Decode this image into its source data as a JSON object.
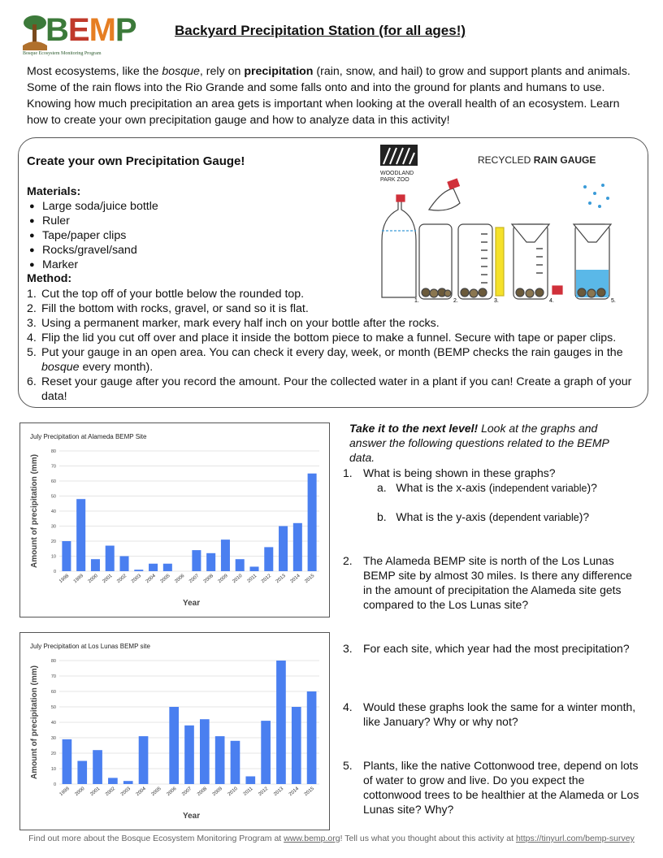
{
  "logo": {
    "letters": [
      "B",
      "E",
      "M",
      "P"
    ],
    "subtitle": "Bosque Ecosystem Monitoring Program",
    "letter_colors": [
      "#3c7a3a",
      "#c0392b",
      "#e67e22",
      "#3c7a3a"
    ]
  },
  "title": "Backyard Precipitation Station (for all ages!)",
  "intro": {
    "p1": "Most ecosystems, like the ",
    "bosque": "bosque",
    "p2": ", rely on ",
    "precip": "precipitation",
    "p3": " (rain, snow, and hail) to grow and support plants and animals. Some of the rain flows into the Rio Grande and some falls onto and into the ground for plants and humans to use. Knowing how much precipitation an area gets is important when looking at the overall health of an ecosystem. Learn how to create your own precipitation gauge and how to analyze data in this activity!"
  },
  "gauge": {
    "heading": "Create your own Precipitation Gauge!",
    "materials_label": "Materials:",
    "materials": [
      "Large soda/juice bottle",
      "Ruler",
      "Tape/paper clips",
      "Rocks/gravel/sand",
      "Marker"
    ],
    "method_label": "Method:",
    "steps": [
      {
        "n": "1.",
        "text": "Cut the top off of your bottle below the rounded top."
      },
      {
        "n": "2.",
        "text": "Fill the bottom with rocks, gravel, or sand so it is flat."
      },
      {
        "n": "3.",
        "text": "Using a permanent marker, mark every half inch on your bottle after the rocks."
      },
      {
        "n": "4.",
        "text": "Flip the lid you cut off over and place it inside the bottom piece to make a funnel. Secure with tape or paper clips."
      },
      {
        "n": "5.",
        "a": "Put your gauge in an open area. You can check it every day, week, or month (BEMP checks the rain gauges in the ",
        "i": "bosque",
        "b": " every month)."
      },
      {
        "n": "6.",
        "text": "Reset your gauge after you record the amount. Pour the collected water in a plant if you can! Create a graph of your data!"
      }
    ],
    "figure": {
      "zoo_line1": "WOODLAND",
      "zoo_line2": "PARK ZOO",
      "label_a": "RECYCLED ",
      "label_b": "RAIN GAUGE",
      "steps": [
        "1.",
        "2.",
        "3.",
        "4.",
        "5."
      ]
    }
  },
  "questions": {
    "lead_bold": "Take it to the next level!",
    "lead_rest": " Look at the graphs and answer the following questions related to the BEMP data.",
    "q1": {
      "n": "1.",
      "text": "What is being shown in these graphs?"
    },
    "q1a": {
      "n": "a.",
      "pre": "What is the x-axis (",
      "small": "independent variable",
      "post": ")?"
    },
    "q1b": {
      "n": "b.",
      "pre": "What is the y-axis (",
      "small": "dependent variable",
      "post": ")?"
    },
    "q2": {
      "n": "2.",
      "text": "The Alameda BEMP site is north of the Los Lunas BEMP site by almost 30 miles. Is there any difference in the amount of precipitation the Alameda site gets compared to the Los Lunas site?"
    },
    "q3": {
      "n": "3.",
      "text": "For each site, which year had the most precipitation?"
    },
    "q4": {
      "n": "4.",
      "text": "Would these graphs look the same for a winter month, like January? Why or why not?"
    },
    "q5": {
      "n": "5.",
      "text": "Plants, like the native Cottonwood tree, depend on lots of water to grow and live. Do you expect the cottonwood trees to be healthier at the Alameda or Los Lunas site? Why?"
    }
  },
  "footer": {
    "a": "Find out more about the Bosque Ecosystem Monitoring Program at ",
    "link1": "www.bemp.org",
    "b": "! Tell us what you thought about this activity at ",
    "link2": "https://tinyurl.com/bemp-survey"
  },
  "chart_data": [
    {
      "type": "bar",
      "title": "July Precipitation at Alameda BEMP Site",
      "xlabel": "Year",
      "ylabel": "Amount of precipitation (mm)",
      "ylim": [
        0,
        80
      ],
      "yticks": [
        0,
        10,
        20,
        30,
        40,
        50,
        60,
        70,
        80
      ],
      "categories": [
        "1998",
        "1999",
        "2000",
        "2001",
        "2002",
        "2003",
        "2004",
        "2005",
        "2006",
        "2007",
        "2008",
        "2009",
        "2010",
        "2011",
        "2012",
        "2013",
        "2014",
        "2015"
      ],
      "values": [
        20,
        48,
        8,
        17,
        10,
        1,
        5,
        5,
        0,
        14,
        12,
        21,
        8,
        3,
        16,
        30,
        32,
        65
      ],
      "bar_color": "#4a7ff0",
      "grid": true
    },
    {
      "type": "bar",
      "title": "July Precipitation at Los Lunas BEMP site",
      "xlabel": "Year",
      "ylabel": "Amount of precipitation (mm)",
      "ylim": [
        0,
        80
      ],
      "yticks": [
        0,
        10,
        20,
        30,
        40,
        50,
        60,
        70,
        80
      ],
      "categories": [
        "1999",
        "2000",
        "2001",
        "2002",
        "2003",
        "2004",
        "2005",
        "2006",
        "2007",
        "2008",
        "2009",
        "2010",
        "2011",
        "2012",
        "2013",
        "2014",
        "2015"
      ],
      "values": [
        29,
        15,
        22,
        4,
        2,
        31,
        0,
        50,
        38,
        42,
        31,
        28,
        5,
        41,
        80,
        50,
        60
      ],
      "bar_color": "#4a7ff0",
      "grid": true
    }
  ]
}
